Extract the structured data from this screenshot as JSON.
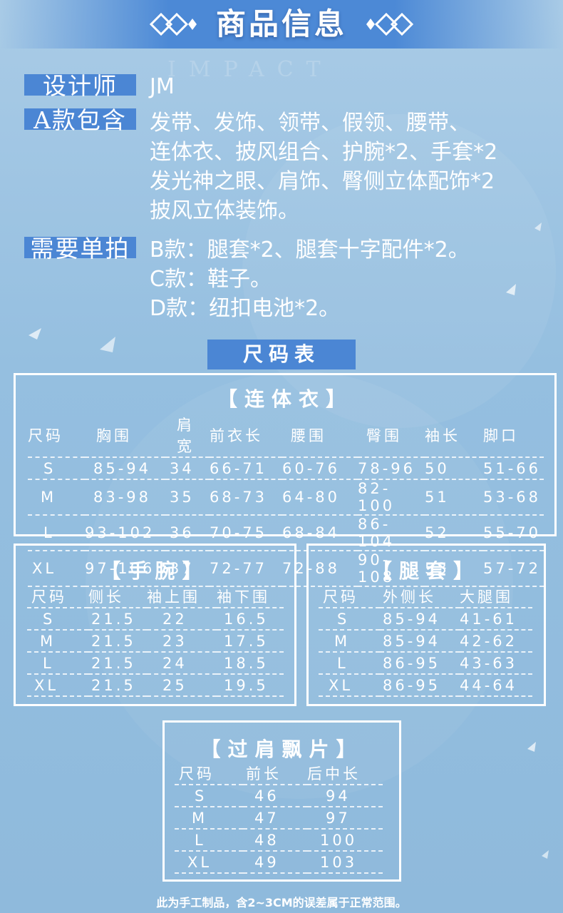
{
  "title": "商品信息",
  "watermark": "IMPACT",
  "info": {
    "designer_label": "设计师",
    "designer_value": "JM",
    "a_label": "A款包含",
    "a_lines": [
      "发带、发饰、领带、假领、腰带、",
      "连体衣、披风组合、护腕*2、手套*2",
      "发光神之眼、肩饰、臀侧立体配饰*2",
      "披风立体装饰。"
    ],
    "extra_label": "需要单拍",
    "extra_lines": [
      "B款：腿套*2、腿套十字配件*2。",
      "C款：鞋子。",
      "D款：纽扣电池*2。"
    ]
  },
  "size_header": "尺码表",
  "jumpsuit": {
    "title": "【连体衣】",
    "columns": [
      "尺码",
      "胸围",
      "肩宽",
      "前衣长",
      "腰围",
      "臀围",
      "袖长",
      "脚口"
    ],
    "rows": [
      [
        "S",
        "85-94",
        "34",
        "66-71",
        "60-76",
        "78-96",
        "50",
        "51-66"
      ],
      [
        "M",
        "83-98",
        "35",
        "68-73",
        "64-80",
        "82-100",
        "51",
        "53-68"
      ],
      [
        "L",
        "93-102",
        "36",
        "70-75",
        "68-84",
        "86-104",
        "52",
        "55-70"
      ],
      [
        "XL",
        "97-106",
        "37",
        "72-77",
        "72-88",
        "90-108",
        "53",
        "57-72"
      ]
    ]
  },
  "wrist": {
    "title": "【手腕】",
    "columns": [
      "尺码",
      "侧长",
      "袖上围",
      "袖下围"
    ],
    "rows": [
      [
        "S",
        "21.5",
        "22",
        "16.5"
      ],
      [
        "M",
        "21.5",
        "23",
        "17.5"
      ],
      [
        "L",
        "21.5",
        "24",
        "18.5"
      ],
      [
        "XL",
        "21.5",
        "25",
        "19.5"
      ]
    ]
  },
  "leg": {
    "title": "【腿套】",
    "columns": [
      "尺码",
      "外侧长",
      "大腿围"
    ],
    "rows": [
      [
        "S",
        "85-94",
        "41-61"
      ],
      [
        "M",
        "85-94",
        "42-62"
      ],
      [
        "L",
        "86-95",
        "43-63"
      ],
      [
        "XL",
        "86-95",
        "44-64"
      ]
    ]
  },
  "shoulder": {
    "title": "【过肩飘片】",
    "columns": [
      "尺码",
      "前长",
      "后中长"
    ],
    "rows": [
      [
        "S",
        "46",
        "94"
      ],
      [
        "M",
        "47",
        "97"
      ],
      [
        "L",
        "48",
        "100"
      ],
      [
        "XL",
        "49",
        "103"
      ]
    ]
  },
  "footer": "此为手工制品，含2~3CM的误差属于正常范围。",
  "colors": {
    "accent": "#4b86d4",
    "background": "#95bfe0",
    "text": "#ffffff"
  }
}
